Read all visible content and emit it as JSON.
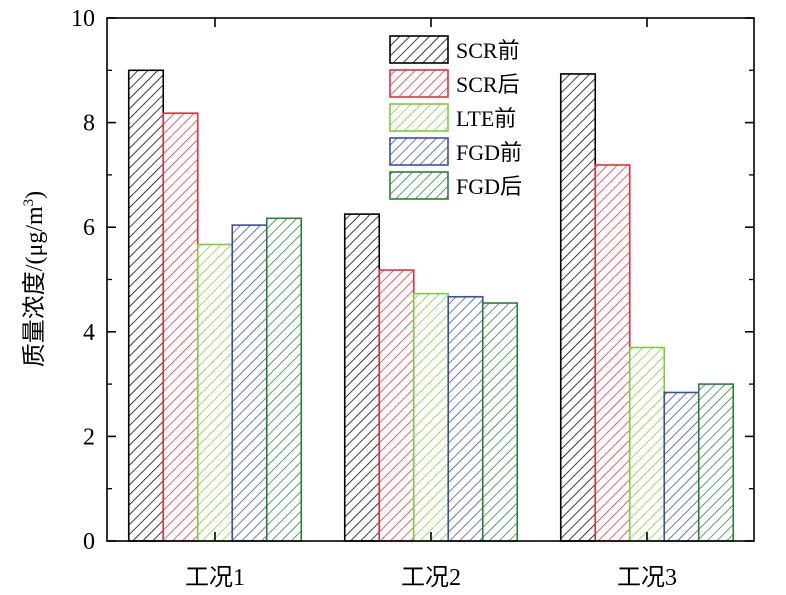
{
  "chart_data": {
    "type": "bar",
    "categories": [
      "工况1",
      "工况2",
      "工况3"
    ],
    "series": [
      {
        "name": "SCR前",
        "color": "#000000",
        "values": [
          9.0,
          6.25,
          8.93
        ]
      },
      {
        "name": "SCR后",
        "color": "#e0313a",
        "values": [
          8.18,
          5.18,
          7.19
        ]
      },
      {
        "name": "LTE前",
        "color": "#7fcb3f",
        "values": [
          5.67,
          4.73,
          3.7
        ]
      },
      {
        "name": "FGD前",
        "color": "#3a4fa3",
        "values": [
          6.04,
          4.67,
          2.84
        ]
      },
      {
        "name": "FGD后",
        "color": "#2d7d3a",
        "values": [
          6.17,
          4.55,
          3.0
        ]
      }
    ],
    "ylabel": "质量浓度/(μg/m³)",
    "ylabel_main": "质量浓度/(μg/m",
    "ylabel_sup": "3",
    "ylabel_tail": ")",
    "ylim": [
      0,
      10
    ],
    "yticks": [
      "0",
      "2",
      "4",
      "6",
      "8",
      "10"
    ],
    "legend_position": "top-right",
    "grid": false,
    "fill_pattern": "diagonal-hatch"
  }
}
